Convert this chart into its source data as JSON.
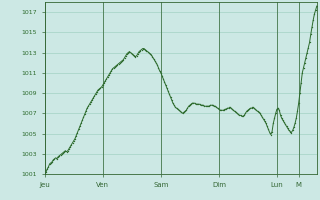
{
  "background_color": "#cce8e4",
  "plot_bg_color": "#cce8e4",
  "line_color": "#2d6b2d",
  "marker_color": "#2d6b2d",
  "grid_color": "#99ccbb",
  "tick_label_color": "#2d6b2d",
  "axis_color": "#336633",
  "ylim": [
    1001,
    1018
  ],
  "yticks": [
    1001,
    1003,
    1005,
    1007,
    1009,
    1011,
    1013,
    1015,
    1017
  ],
  "xtick_labels": [
    "Jeu",
    "Ven",
    "Sam",
    "Dim",
    "Lun",
    "M"
  ],
  "xtick_positions": [
    0,
    48,
    96,
    144,
    192,
    210
  ],
  "data_y": [
    1001.0,
    1001.2,
    1001.5,
    1001.7,
    1002.0,
    1002.1,
    1002.2,
    1002.4,
    1002.5,
    1002.6,
    1002.5,
    1002.7,
    1002.8,
    1002.9,
    1003.0,
    1003.1,
    1003.2,
    1003.3,
    1003.2,
    1003.3,
    1003.5,
    1003.7,
    1003.9,
    1004.1,
    1004.3,
    1004.5,
    1004.8,
    1005.1,
    1005.4,
    1005.7,
    1006.0,
    1006.3,
    1006.6,
    1006.9,
    1007.2,
    1007.5,
    1007.7,
    1007.9,
    1008.1,
    1008.3,
    1008.5,
    1008.7,
    1008.9,
    1009.1,
    1009.3,
    1009.4,
    1009.5,
    1009.6,
    1009.8,
    1010.0,
    1010.2,
    1010.4,
    1010.6,
    1010.8,
    1011.0,
    1011.2,
    1011.4,
    1011.5,
    1011.6,
    1011.7,
    1011.8,
    1011.9,
    1012.0,
    1012.1,
    1012.2,
    1012.3,
    1012.5,
    1012.7,
    1012.9,
    1013.0,
    1013.1,
    1013.0,
    1012.9,
    1012.8,
    1012.7,
    1012.6,
    1012.7,
    1012.9,
    1013.1,
    1013.2,
    1013.3,
    1013.4,
    1013.4,
    1013.3,
    1013.2,
    1013.1,
    1013.0,
    1012.9,
    1012.8,
    1012.6,
    1012.4,
    1012.2,
    1012.0,
    1011.8,
    1011.5,
    1011.2,
    1011.0,
    1010.7,
    1010.4,
    1010.1,
    1009.8,
    1009.5,
    1009.2,
    1008.9,
    1008.6,
    1008.3,
    1008.0,
    1007.8,
    1007.6,
    1007.5,
    1007.4,
    1007.3,
    1007.2,
    1007.1,
    1007.0,
    1007.1,
    1007.2,
    1007.3,
    1007.5,
    1007.7,
    1007.8,
    1007.9,
    1008.0,
    1008.0,
    1008.0,
    1007.9,
    1007.9,
    1007.9,
    1007.9,
    1007.8,
    1007.8,
    1007.8,
    1007.7,
    1007.7,
    1007.7,
    1007.7,
    1007.7,
    1007.8,
    1007.8,
    1007.8,
    1007.7,
    1007.7,
    1007.6,
    1007.5,
    1007.4,
    1007.3,
    1007.3,
    1007.3,
    1007.3,
    1007.4,
    1007.4,
    1007.5,
    1007.5,
    1007.6,
    1007.5,
    1007.4,
    1007.3,
    1007.2,
    1007.1,
    1007.0,
    1006.9,
    1006.8,
    1006.8,
    1006.7,
    1006.7,
    1006.8,
    1007.0,
    1007.2,
    1007.3,
    1007.4,
    1007.5,
    1007.5,
    1007.6,
    1007.5,
    1007.4,
    1007.3,
    1007.2,
    1007.1,
    1007.0,
    1006.8,
    1006.6,
    1006.4,
    1006.2,
    1006.0,
    1005.7,
    1005.4,
    1005.1,
    1004.9,
    1005.2,
    1006.0,
    1006.5,
    1007.0,
    1007.4,
    1007.5,
    1007.3,
    1006.8,
    1006.5,
    1006.3,
    1006.1,
    1005.9,
    1005.7,
    1005.5,
    1005.3,
    1005.2,
    1005.1,
    1005.3,
    1005.6,
    1006.0,
    1006.5,
    1007.2,
    1008.0,
    1009.0,
    1010.0,
    1011.0,
    1011.5,
    1012.0,
    1012.5,
    1013.0,
    1013.5,
    1014.0,
    1014.8,
    1015.5,
    1016.2,
    1016.8,
    1017.2,
    1017.6
  ]
}
